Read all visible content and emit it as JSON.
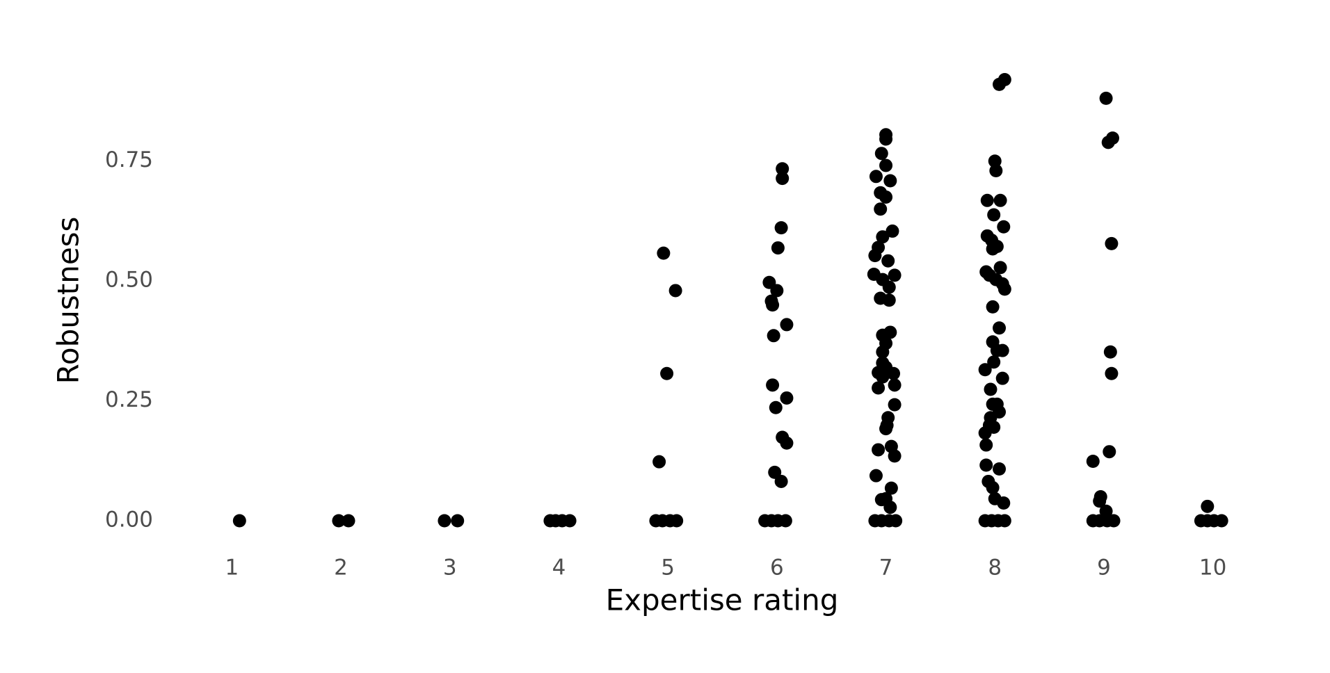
{
  "chart_data": {
    "type": "scatter",
    "xlabel": "Expertise rating",
    "ylabel": "Robustness",
    "color": "#000000",
    "x": [
      1.07,
      1.98,
      2.07,
      2.95,
      3.07,
      3.92,
      3.97,
      4.03,
      4.1,
      4.89,
      4.95,
      5.02,
      5.08,
      4.96,
      5.07,
      4.99,
      4.92,
      5.89,
      5.95,
      6.01,
      6.08,
      6.05,
      6.05,
      6.04,
      6.01,
      5.93,
      6.0,
      5.95,
      5.96,
      6.09,
      5.97,
      5.96,
      6.09,
      5.99,
      6.05,
      6.09,
      5.98,
      6.04,
      6.9,
      6.96,
      7.03,
      7.09,
      7.0,
      7.0,
      6.96,
      7.0,
      6.91,
      7.04,
      6.95,
      7.0,
      6.95,
      7.06,
      6.97,
      6.93,
      6.9,
      7.02,
      6.89,
      7.08,
      6.97,
      7.03,
      6.95,
      7.03,
      7.04,
      6.97,
      7.0,
      6.97,
      6.97,
      7.0,
      6.93,
      7.07,
      6.97,
      7.08,
      6.93,
      7.08,
      7.02,
      7.01,
      7.0,
      6.93,
      7.05,
      7.08,
      6.91,
      7.05,
      6.96,
      7.0,
      7.04,
      7.91,
      7.97,
      8.03,
      8.09,
      8.09,
      8.04,
      8.0,
      8.01,
      7.93,
      8.05,
      7.99,
      8.08,
      7.93,
      7.97,
      8.02,
      7.98,
      8.05,
      7.92,
      7.95,
      8.01,
      8.07,
      8.09,
      7.98,
      8.04,
      7.98,
      8.02,
      8.07,
      7.99,
      7.91,
      8.07,
      7.96,
      7.98,
      8.02,
      8.04,
      7.96,
      7.95,
      7.99,
      7.91,
      7.92,
      8.04,
      7.92,
      7.94,
      7.98,
      8.0,
      8.08,
      8.9,
      8.96,
      9.03,
      9.09,
      9.02,
      9.08,
      9.04,
      9.07,
      9.06,
      9.07,
      9.05,
      8.9,
      8.97,
      8.96,
      9.02,
      9.89,
      9.95,
      10.01,
      10.08,
      9.95
    ],
    "values": [
      0,
      0,
      0,
      0,
      0,
      0,
      0,
      0,
      0,
      0,
      0,
      0,
      0,
      0.558,
      0.48,
      0.307,
      0.123,
      0,
      0,
      0,
      0,
      0.734,
      0.714,
      0.611,
      0.569,
      0.497,
      0.48,
      0.458,
      0.45,
      0.409,
      0.386,
      0.283,
      0.256,
      0.236,
      0.174,
      0.162,
      0.101,
      0.082,
      0,
      0,
      0,
      0,
      0.805,
      0.796,
      0.766,
      0.741,
      0.718,
      0.709,
      0.684,
      0.675,
      0.65,
      0.604,
      0.592,
      0.57,
      0.553,
      0.542,
      0.514,
      0.512,
      0.503,
      0.487,
      0.464,
      0.46,
      0.393,
      0.387,
      0.37,
      0.352,
      0.329,
      0.32,
      0.309,
      0.307,
      0.3,
      0.283,
      0.277,
      0.242,
      0.215,
      0.199,
      0.192,
      0.148,
      0.155,
      0.135,
      0.094,
      0.068,
      0.044,
      0.046,
      0.028,
      0,
      0,
      0,
      0,
      0.92,
      0.91,
      0.75,
      0.73,
      0.668,
      0.668,
      0.638,
      0.613,
      0.594,
      0.585,
      0.572,
      0.567,
      0.528,
      0.519,
      0.512,
      0.503,
      0.494,
      0.483,
      0.446,
      0.402,
      0.373,
      0.355,
      0.355,
      0.331,
      0.315,
      0.297,
      0.274,
      0.243,
      0.243,
      0.227,
      0.215,
      0.199,
      0.195,
      0.183,
      0.158,
      0.108,
      0.116,
      0.082,
      0.069,
      0.046,
      0.037,
      0,
      0,
      0,
      0,
      0.881,
      0.798,
      0.789,
      0.578,
      0.352,
      0.307,
      0.144,
      0.124,
      0.05,
      0.041,
      0.02,
      0,
      0,
      0,
      0,
      0.03
    ],
    "xlim": [
      0.5,
      10.5
    ],
    "ylim": [
      -0.05,
      0.97
    ],
    "xticks": [
      1,
      2,
      3,
      4,
      5,
      6,
      7,
      8,
      9,
      10
    ],
    "yticks": [
      {
        "value": 0,
        "label": "0.00"
      },
      {
        "value": 0.25,
        "label": "0.25"
      },
      {
        "value": 0.5,
        "label": "0.50"
      },
      {
        "value": 0.75,
        "label": "0.75"
      }
    ],
    "grid": false
  }
}
